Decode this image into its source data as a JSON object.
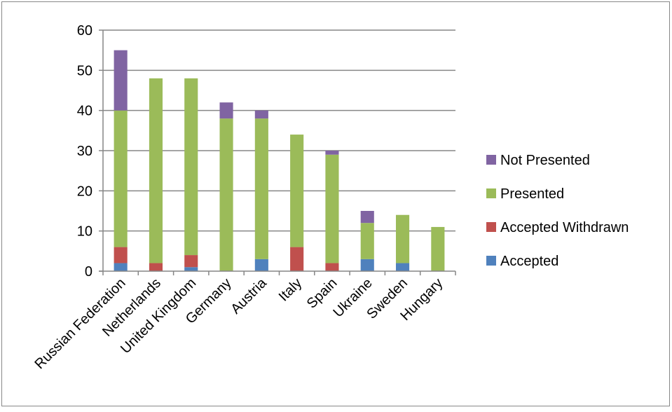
{
  "chart_data": {
    "type": "bar",
    "stacked": true,
    "categories": [
      "Russian Federation",
      "Netherlands",
      "United Kingdom",
      "Germany",
      "Austria",
      "Italy",
      "Spain",
      "Ukraine",
      "Sweden",
      "Hungary"
    ],
    "series": [
      {
        "name": "Accepted",
        "color": "#4F81BD",
        "values": [
          2,
          0,
          1,
          0,
          3,
          0,
          0,
          3,
          2,
          0
        ]
      },
      {
        "name": "Accepted Withdrawn",
        "color": "#C0504D",
        "values": [
          4,
          2,
          3,
          0,
          0,
          6,
          2,
          0,
          0,
          0
        ]
      },
      {
        "name": "Presented",
        "color": "#9BBB59",
        "values": [
          34,
          46,
          44,
          38,
          35,
          28,
          27,
          9,
          12,
          11
        ]
      },
      {
        "name": "Not Presented",
        "color": "#8064A2",
        "values": [
          15,
          0,
          0,
          4,
          2,
          0,
          1,
          3,
          0,
          0
        ]
      }
    ],
    "ylim": [
      0,
      60
    ],
    "yticks": [
      0,
      10,
      20,
      30,
      40,
      50,
      60
    ],
    "grid": true,
    "legend_position": "right",
    "title": "",
    "xlabel": "",
    "ylabel": ""
  }
}
